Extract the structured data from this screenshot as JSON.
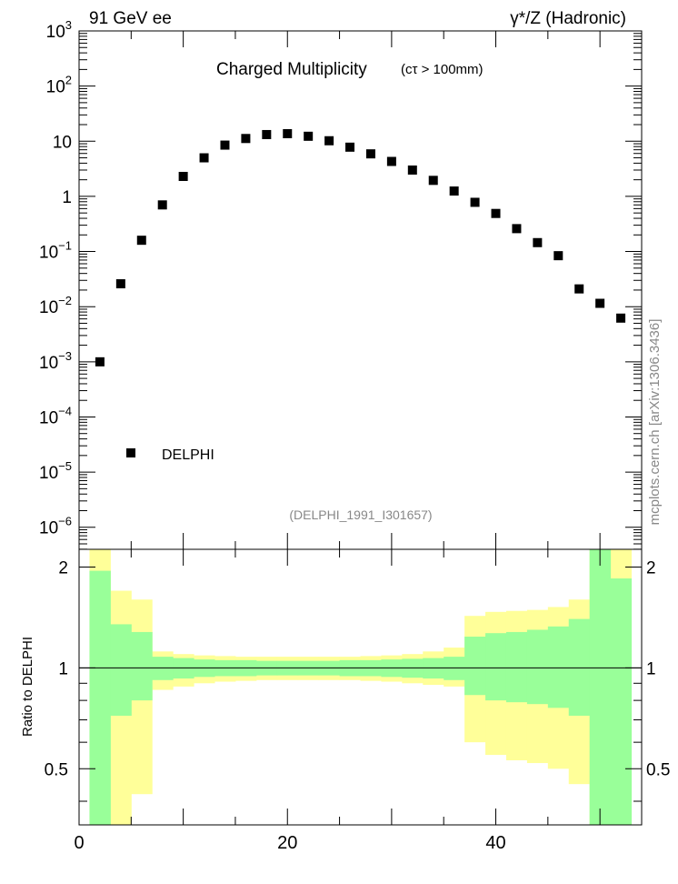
{
  "header": {
    "left": "91 GeV ee",
    "right": "γ*/Z (Hadronic)"
  },
  "side_label": "mcplots.cern.ch [arXiv:1306.3436]",
  "chart_data": [
    {
      "type": "scatter",
      "title_main": "Charged Multiplicity",
      "title_sub": "(cτ > 100mm)",
      "analysis_label": "(DELPHI_1991_I301657)",
      "yscale": "log",
      "xlim": [
        0,
        54
      ],
      "ylim_exp": [
        -6.4,
        3
      ],
      "y_tick_labels": [
        {
          "base": "10",
          "sup": "3"
        },
        {
          "base": "10",
          "sup": "2"
        },
        {
          "base": "10",
          "sup": ""
        },
        {
          "base": "1",
          "sup": ""
        },
        {
          "base": "10",
          "sup": "−1"
        },
        {
          "base": "10",
          "sup": "−2"
        },
        {
          "base": "10",
          "sup": "−3"
        },
        {
          "base": "10",
          "sup": "−4"
        },
        {
          "base": "10",
          "sup": "−5"
        },
        {
          "base": "10",
          "sup": "−6"
        }
      ],
      "legend": {
        "position": "bottom-left",
        "entries": [
          "DELPHI"
        ]
      },
      "series": [
        {
          "name": "DELPHI",
          "color": "#000000",
          "x": [
            2,
            4,
            6,
            8,
            10,
            12,
            14,
            16,
            18,
            20,
            22,
            24,
            26,
            28,
            30,
            32,
            34,
            36,
            38,
            40,
            42,
            44,
            46,
            48,
            50,
            52
          ],
          "y": [
            0.001,
            0.026,
            0.16,
            0.7,
            2.3,
            5.0,
            8.5,
            11.2,
            13.2,
            13.7,
            12.3,
            10.2,
            7.8,
            5.9,
            4.3,
            3.0,
            1.95,
            1.25,
            0.78,
            0.49,
            0.26,
            0.145,
            0.084,
            0.021,
            0.0115,
            0.0062
          ]
        }
      ]
    },
    {
      "type": "area",
      "ylabel": "Ratio to DELPHI",
      "xlim": [
        0,
        54
      ],
      "ylim": [
        0.34,
        2.26
      ],
      "x_ticks": [
        0,
        20,
        40
      ],
      "y_ticks": [
        0.5,
        1,
        2
      ],
      "y_tick_labels": [
        "0.5",
        "1",
        "2"
      ],
      "reference_line": 1,
      "bands": {
        "x_edges": [
          1,
          3,
          5,
          7,
          9,
          11,
          13,
          15,
          17,
          19,
          21,
          23,
          25,
          27,
          29,
          31,
          33,
          35,
          37,
          39,
          41,
          43,
          45,
          47,
          49,
          51,
          53
        ],
        "outer_color": "#ffff99",
        "inner_color": "#99ff99",
        "yellow_hi": [
          2.5,
          1.7,
          1.6,
          1.12,
          1.1,
          1.09,
          1.085,
          1.08,
          1.08,
          1.08,
          1.08,
          1.08,
          1.08,
          1.085,
          1.09,
          1.1,
          1.12,
          1.15,
          1.43,
          1.47,
          1.48,
          1.49,
          1.52,
          1.6,
          2.5,
          2.5
        ],
        "yellow_lo": [
          0.2,
          0.3,
          0.42,
          0.86,
          0.88,
          0.9,
          0.91,
          0.915,
          0.92,
          0.92,
          0.92,
          0.92,
          0.92,
          0.915,
          0.91,
          0.9,
          0.89,
          0.88,
          0.6,
          0.55,
          0.53,
          0.52,
          0.5,
          0.45,
          0.2,
          0.2
        ],
        "green_hi": [
          1.95,
          1.35,
          1.28,
          1.08,
          1.07,
          1.06,
          1.055,
          1.055,
          1.05,
          1.05,
          1.05,
          1.05,
          1.055,
          1.055,
          1.06,
          1.065,
          1.07,
          1.08,
          1.24,
          1.27,
          1.28,
          1.3,
          1.33,
          1.4,
          2.5,
          1.85
        ],
        "green_lo": [
          0.33,
          0.72,
          0.8,
          0.92,
          0.93,
          0.94,
          0.945,
          0.945,
          0.95,
          0.95,
          0.95,
          0.95,
          0.945,
          0.945,
          0.94,
          0.935,
          0.93,
          0.92,
          0.83,
          0.8,
          0.79,
          0.78,
          0.76,
          0.72,
          0.33,
          0.33
        ]
      }
    }
  ]
}
